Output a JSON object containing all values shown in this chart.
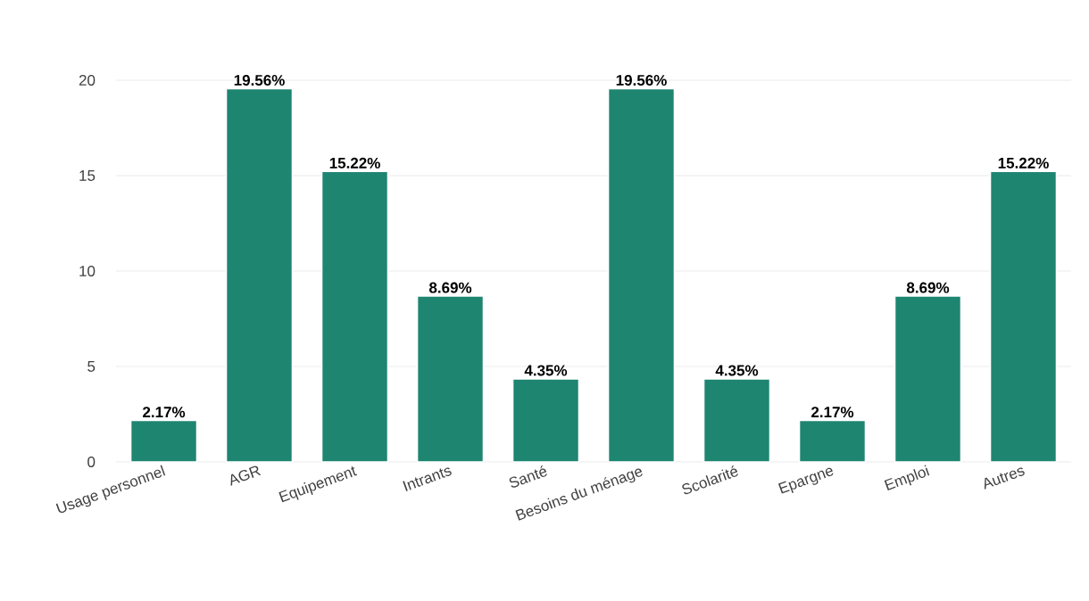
{
  "chart_data": {
    "type": "bar",
    "categories": [
      "Usage personnel",
      "AGR",
      "Equipement",
      "Intrants",
      "Santé",
      "Besoins du ménage",
      "Scolarité",
      "Epargne",
      "Emploi",
      "Autres"
    ],
    "values": [
      2.17,
      19.56,
      15.22,
      8.69,
      4.35,
      19.56,
      4.35,
      2.17,
      8.69,
      15.22
    ],
    "value_labels": [
      "2.17%",
      "19.56%",
      "15.22%",
      "8.69%",
      "4.35%",
      "19.56%",
      "4.35%",
      "2.17%",
      "8.69%",
      "15.22%"
    ],
    "color": "#1e8571",
    "ylim": [
      0,
      20
    ],
    "yticks": [
      0,
      5,
      10,
      15,
      20
    ],
    "grid": "y"
  }
}
